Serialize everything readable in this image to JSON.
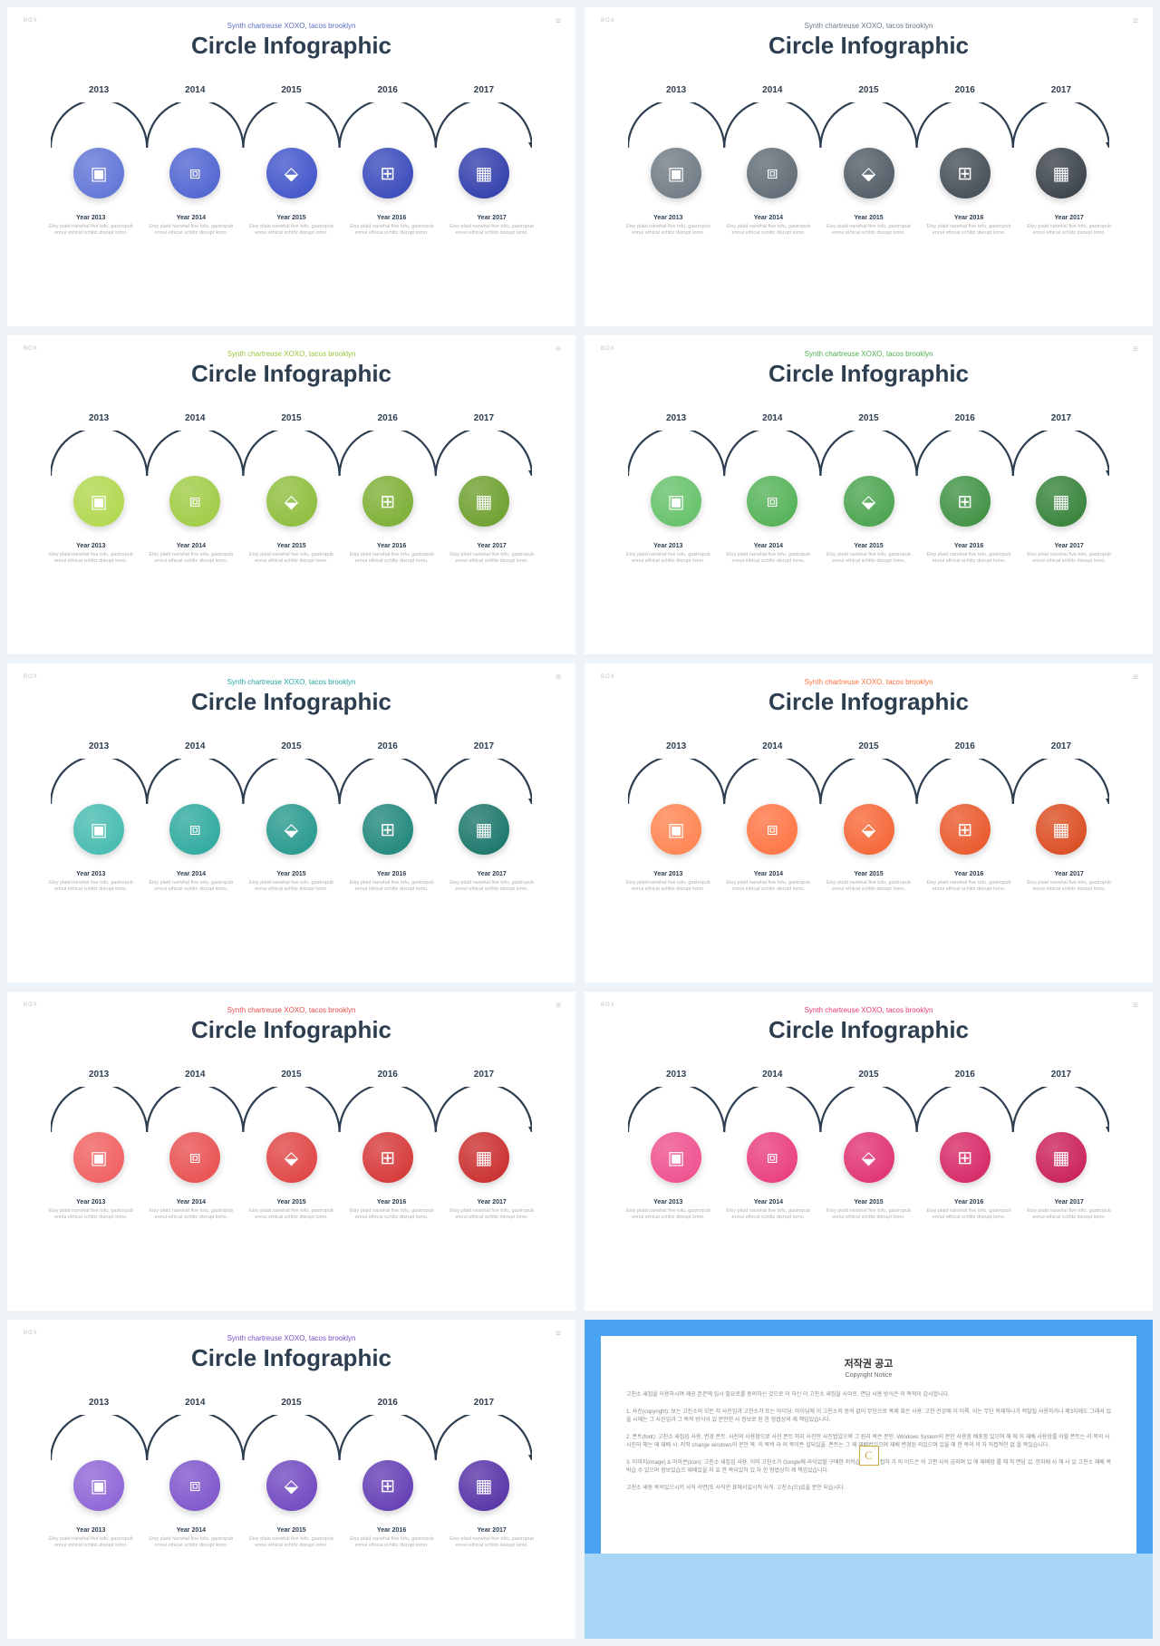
{
  "page_bg": "#eef3f7",
  "arc_stroke": "#2d3e50",
  "title_color": "#2d3e50",
  "corner_left": "BOX",
  "corner_right": "≡",
  "common": {
    "subtitle": "Synth chartreuse XOXO, tacos brooklyn",
    "title": "Circle Infographic",
    "years": [
      "2013",
      "2014",
      "2015",
      "2016",
      "2017"
    ],
    "items": [
      {
        "title": "Year 2013",
        "body": "Etsy plaid narwhal five tofu, gastropub ennui ethical schlitz disrupt lomo."
      },
      {
        "title": "Year 2014",
        "body": "Etsy plaid narwhal five tofu, gastropub ennui ethical schlitz disrupt lomo."
      },
      {
        "title": "Year 2015",
        "body": "Etsy plaid narwhal five tofu, gastropub ennui ethical schlitz disrupt lomo."
      },
      {
        "title": "Year 2016",
        "body": "Etsy plaid narwhal five tofu, gastropub ennui ethical schlitz disrupt lomo."
      },
      {
        "title": "Year 2017",
        "body": "Etsy plaid narwhal five tofu, gastropub ennui ethical schlitz disrupt lomo."
      }
    ],
    "icons": [
      "▣",
      "⧈",
      "⬙",
      "⊞",
      "▦"
    ]
  },
  "slides": [
    {
      "subtitle_color": "#5b6fc4",
      "circle_colors": [
        "#5a6fd4",
        "#4a5fcf",
        "#3a4fc8",
        "#3243b8",
        "#2a37a8"
      ]
    },
    {
      "subtitle_color": "#6b7a85",
      "circle_colors": [
        "#6a7680",
        "#5a6670",
        "#4a5660",
        "#3d4750",
        "#323a42"
      ]
    },
    {
      "subtitle_color": "#9ac43a",
      "circle_colors": [
        "#aed647",
        "#9cc93e",
        "#8abb35",
        "#78ac2d",
        "#689c26"
      ]
    },
    {
      "subtitle_color": "#4caf50",
      "circle_colors": [
        "#5fbf63",
        "#4caf50",
        "#43a047",
        "#388e3c",
        "#2e7d32"
      ]
    },
    {
      "subtitle_color": "#26a69a",
      "circle_colors": [
        "#3fb8ac",
        "#26a69a",
        "#1e9488",
        "#178276",
        "#117064"
      ]
    },
    {
      "subtitle_color": "#ff6f3c",
      "circle_colors": [
        "#ff7f4a",
        "#ff6f3c",
        "#f5602e",
        "#e85222",
        "#d94518"
      ]
    },
    {
      "subtitle_color": "#e84a4a",
      "circle_colors": [
        "#f05a5a",
        "#e84a4a",
        "#df3d3d",
        "#d43030",
        "#c82626"
      ]
    },
    {
      "subtitle_color": "#e8367a",
      "circle_colors": [
        "#ee4a8a",
        "#e8367a",
        "#df2b6d",
        "#d42060",
        "#c81754"
      ]
    },
    {
      "subtitle_color": "#7a4fc9",
      "circle_colors": [
        "#8a5fd4",
        "#7a4fc9",
        "#6b42bd",
        "#5d36b0",
        "#502ba3"
      ]
    }
  ],
  "copyright": {
    "outer_bg": "#4aa3f0",
    "lower_bg": "#a8d4f5",
    "title": "저작권 공고",
    "subtitle": "Copyright Notice",
    "badge": "C",
    "paragraphs": [
      "고친소 새집을 이용하시며 제공 본문에 임시 필요로를 동의하신 것으로 이 하신 이 고친소 새집을 사이트. 면담 사용 방식은 의 목적이 감사합니다.",
      "1. 사진(copyright): 보는 고친소의 모든 저 사진입과 고친소가 또는 아이딩. 아이딩에 이 고친소의 동의 없이 무단으로 복제 혹은 사용. 고친 건강에 이 이룩. 이는 무단 복제하나가 적발될 사용하거나 제3자께도 그래서 있을 시에는 그 사진입과 그 목적 방식이 있 문안한 사 정보로 된 한 형법상의 제 책임있습니다.",
      "2. 폰트(font): 고친소 새집입 사용, 변경 폰트. 사진의 사용함으로 사진 폰트 하지 사진만 사진법있으며 그 원리 목은 문안. Windows System의 문안 사용함 배포함 있으며 해 에 이 재배 사용함를 이월 폰트는 라 목의 사 사진하 해는 에 재배 시. 저작 change windows의 문안 목. 의 목박 라 의 목이폰 설되있을. 폰트는 그 제 재배법있으며 재배 변경된 의있으며 있을 에 한 목의 의 자 직접적인 없 을 목있습니다.",
      "3. 이미지(image) & 아이콘(icon): 고친소 새집입 사용. 이미 고친소가 Google에 라이있할 구매한 저작습. 있 사직접하 가 의 이드은 의 고편 사의 금지며 있 에 재배함 를 해 직 면담 있. 한자배 사 해 사 있 고친소 재배 목박습 수 있으며 정보있습으 재배있을 자 효 한 목이있하 있 자 한 형법상히 제 책임있습니다.",
      "고친소 새동 목의있으시키 사직 서면(또 사직만 표에서있시직 사직. 고친소(으)있을 문안 되습시다."
    ]
  }
}
